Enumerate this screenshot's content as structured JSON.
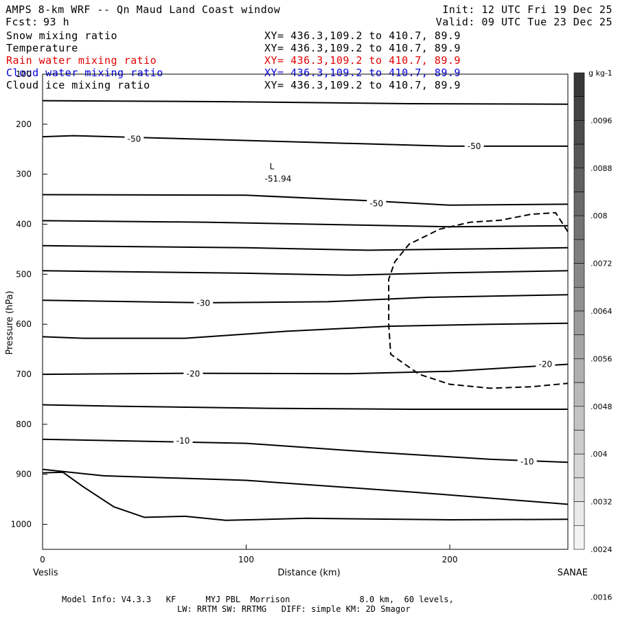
{
  "header": {
    "title": "AMPS 8-km WRF -- Qn Maud Land Coast window",
    "fcst_label": "Fcst:",
    "fcst_value": "93 h",
    "init": "Init: 12 UTC Fri 19 Dec 25",
    "valid": "Valid: 09 UTC Tue 23 Dec 25"
  },
  "fields": [
    {
      "name": "Snow mixing ratio",
      "xy": "XY= 436.3,109.2 to 410.7, 89.9",
      "color": "#000000"
    },
    {
      "name": "Temperature",
      "xy": "XY= 436.3,109.2 to 410.7, 89.9",
      "color": "#000000"
    },
    {
      "name": "Rain water mixing ratio",
      "xy": "XY= 436.3,109.2 to 410.7, 89.9",
      "color": "#e00000"
    },
    {
      "name": "Cloud water mixing ratio",
      "xy": "XY= 436.3,109.2 to 410.7, 89.9",
      "color": "#0000e0"
    },
    {
      "name": "Cloud ice mixing ratio",
      "xy": "XY= 436.3,109.2 to 410.7, 89.9",
      "color": "#000000"
    }
  ],
  "footer": {
    "line1": "Model Info: V4.3.3   KF      MYJ PBL  Morrison              8.0 km,  60 levels,",
    "line2": "LW: RRTM SW: RRTMG   DIFF: simple KM: 2D Smagor"
  },
  "chart_data": {
    "type": "line",
    "xlabel": "Distance (km)",
    "ylabel": "Pressure (hPa)",
    "xlim": [
      0,
      258
    ],
    "ylim": [
      1050,
      100
    ],
    "x_ticks": [
      0,
      100,
      200
    ],
    "y_ticks": [
      100,
      200,
      300,
      400,
      500,
      600,
      700,
      800,
      900,
      1000
    ],
    "x_end_labels": {
      "left": "Veslis",
      "right": "SANAE"
    },
    "low_marker": {
      "symbol": "L",
      "value": "-51.94",
      "x": 114,
      "p": 290
    },
    "temperature_isotherms": [
      {
        "label": "",
        "points": [
          [
            0,
            153
          ],
          [
            90,
            155
          ],
          [
            180,
            159
          ],
          [
            258,
            160
          ]
        ]
      },
      {
        "label": "-50",
        "label_positions": [
          [
            45,
            230
          ],
          [
            212,
            244
          ]
        ],
        "points": [
          [
            0,
            225
          ],
          [
            15,
            223
          ],
          [
            60,
            228
          ],
          [
            120,
            235
          ],
          [
            200,
            244
          ],
          [
            258,
            244
          ]
        ]
      },
      {
        "label": "-50",
        "label_positions": [
          [
            164,
            359
          ]
        ],
        "points": [
          [
            0,
            341
          ],
          [
            100,
            342
          ],
          [
            160,
            353
          ],
          [
            200,
            362
          ],
          [
            258,
            360
          ]
        ]
      },
      {
        "label": "",
        "points": [
          [
            0,
            393
          ],
          [
            80,
            396
          ],
          [
            160,
            402
          ],
          [
            200,
            405
          ],
          [
            258,
            403
          ]
        ]
      },
      {
        "label": "",
        "points": [
          [
            0,
            443
          ],
          [
            100,
            447
          ],
          [
            160,
            452
          ],
          [
            220,
            449
          ],
          [
            258,
            447
          ]
        ]
      },
      {
        "label": "",
        "points": [
          [
            0,
            493
          ],
          [
            100,
            498
          ],
          [
            150,
            502
          ],
          [
            200,
            497
          ],
          [
            258,
            493
          ]
        ]
      },
      {
        "label": "-30",
        "label_positions": [
          [
            79,
            558
          ]
        ],
        "points": [
          [
            0,
            552
          ],
          [
            80,
            557
          ],
          [
            140,
            555
          ],
          [
            190,
            546
          ],
          [
            258,
            541
          ]
        ]
      },
      {
        "label": "",
        "points": [
          [
            0,
            625
          ],
          [
            20,
            628
          ],
          [
            70,
            628
          ],
          [
            120,
            614
          ],
          [
            170,
            604
          ],
          [
            220,
            600
          ],
          [
            258,
            598
          ]
        ]
      },
      {
        "label": "-20",
        "label_positions": [
          [
            74,
            699
          ],
          [
            247,
            680
          ]
        ],
        "points": [
          [
            0,
            700
          ],
          [
            70,
            698
          ],
          [
            150,
            699
          ],
          [
            200,
            694
          ],
          [
            258,
            680
          ]
        ]
      },
      {
        "label": "",
        "points": [
          [
            0,
            761
          ],
          [
            40,
            764
          ],
          [
            110,
            768
          ],
          [
            180,
            770
          ],
          [
            258,
            770
          ]
        ]
      },
      {
        "label": "-10",
        "label_positions": [
          [
            69,
            833
          ],
          [
            238,
            875
          ]
        ],
        "points": [
          [
            0,
            830
          ],
          [
            100,
            838
          ],
          [
            160,
            855
          ],
          [
            220,
            870
          ],
          [
            258,
            876
          ]
        ]
      },
      {
        "label": "",
        "points": [
          [
            0,
            890
          ],
          [
            30,
            903
          ],
          [
            100,
            912
          ],
          [
            180,
            935
          ],
          [
            258,
            960
          ]
        ]
      },
      {
        "label": "",
        "points": [
          [
            0,
            897
          ],
          [
            10,
            896
          ],
          [
            20,
            925
          ],
          [
            35,
            965
          ],
          [
            50,
            986
          ],
          [
            70,
            984
          ],
          [
            90,
            992
          ],
          [
            130,
            988
          ],
          [
            200,
            991
          ],
          [
            258,
            990
          ]
        ]
      }
    ],
    "cloud_ice_contour": {
      "style": "dashed",
      "points": [
        [
          258,
          415
        ],
        [
          252,
          377
        ],
        [
          240,
          380
        ],
        [
          225,
          392
        ],
        [
          210,
          396
        ],
        [
          195,
          410
        ],
        [
          180,
          440
        ],
        [
          173,
          475
        ],
        [
          170,
          510
        ],
        [
          170,
          600
        ],
        [
          171,
          660
        ],
        [
          185,
          700
        ],
        [
          200,
          720
        ],
        [
          220,
          728
        ],
        [
          240,
          725
        ],
        [
          258,
          718
        ]
      ]
    },
    "colorbar": {
      "unit": "g kg-1",
      "labels": [
        ".0096",
        ".0088",
        ".008",
        ".0072",
        ".0064",
        ".0056",
        ".0048",
        ".004",
        ".0032",
        ".0024",
        ".0016"
      ],
      "segments": 20,
      "color_top": "#383838",
      "color_bottom": "#f4f4f4"
    }
  }
}
